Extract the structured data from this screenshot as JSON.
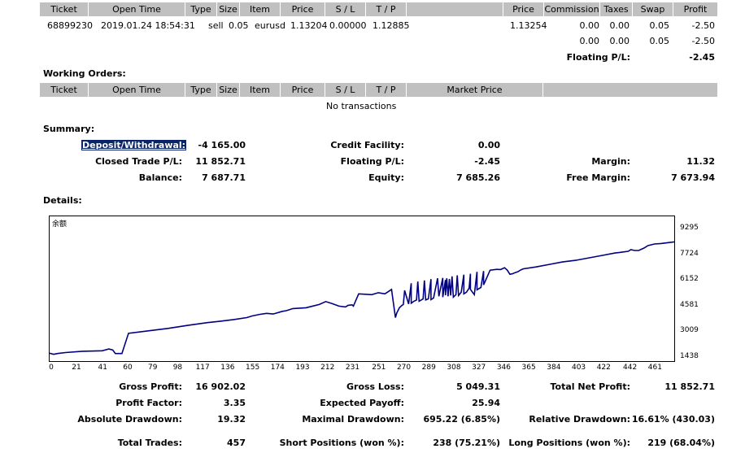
{
  "positions": {
    "headers": [
      "Ticket",
      "Open Time",
      "Type",
      "Size",
      "Item",
      "Price",
      "S / L",
      "T / P",
      "",
      "Price",
      "Commission",
      "Taxes",
      "Swap",
      "Profit"
    ],
    "row": {
      "ticket": "68899230",
      "open_time": "2019.01.24 18:54:31",
      "type": "sell",
      "size": "0.05",
      "item": "eurusd",
      "price": "1.13204",
      "sl": "0.00000",
      "tp": "1.12885",
      "close_price": "1.13254",
      "commission": "0.00",
      "taxes": "0.00",
      "swap": "0.05",
      "profit": "-2.50"
    },
    "subtotal": {
      "commission": "0.00",
      "taxes": "0.00",
      "swap": "0.05",
      "profit": "-2.50"
    },
    "floating_label": "Floating P/L:",
    "floating_value": "-2.45"
  },
  "working_orders": {
    "title": "Working Orders:",
    "headers": [
      "Ticket",
      "Open Time",
      "Type",
      "Size",
      "Item",
      "Price",
      "S / L",
      "T / P",
      "Market Price",
      ""
    ],
    "empty": "No transactions"
  },
  "summary": {
    "title": "Summary:",
    "deposit_label": "Deposit/Withdrawal:",
    "deposit_value": "-4 165.00",
    "credit_label": "Credit Facility:",
    "credit_value": "0.00",
    "closed_label": "Closed Trade P/L:",
    "closed_value": "11 852.71",
    "floating_label": "Floating P/L:",
    "floating_value": "-2.45",
    "margin_label": "Margin:",
    "margin_value": "11.32",
    "balance_label": "Balance:",
    "balance_value": "7 687.71",
    "equity_label": "Equity:",
    "equity_value": "7 685.26",
    "free_margin_label": "Free Margin:",
    "free_margin_value": "7 673.94"
  },
  "details": {
    "title": "Details:"
  },
  "chart_data": {
    "type": "line",
    "legend": "余额",
    "color": "#000080",
    "y_ticks": [
      "9295",
      "7724",
      "6152",
      "4581",
      "3009",
      "1438"
    ],
    "ylim": [
      1438,
      9295
    ],
    "x_ticks": [
      "0",
      "21",
      "41",
      "60",
      "79",
      "98",
      "117",
      "136",
      "155",
      "174",
      "193",
      "212",
      "231",
      "251",
      "270",
      "289",
      "308",
      "327",
      "346",
      "365",
      "384",
      "403",
      "422",
      "442",
      "461"
    ],
    "xlim": [
      0,
      475
    ],
    "x": [
      0,
      3,
      6,
      12,
      25,
      40,
      45,
      48,
      50,
      55,
      60,
      75,
      90,
      105,
      120,
      130,
      140,
      150,
      154,
      160,
      165,
      170,
      177,
      180,
      185,
      195,
      205,
      210,
      215,
      220,
      225,
      227,
      230,
      231,
      235,
      245,
      250,
      255,
      260,
      270,
      275,
      280,
      285,
      290,
      295,
      299,
      301,
      302,
      304,
      306,
      310,
      315,
      320,
      325,
      330,
      335,
      340,
      343,
      346,
      348,
      350,
      352,
      354,
      356,
      358,
      360,
      370,
      380,
      390,
      400,
      410,
      420,
      430,
      435,
      440,
      442,
      445,
      448,
      452,
      455,
      460,
      465,
      470,
      475
    ],
    "y": [
      1720,
      1650,
      1700,
      1760,
      1840,
      1870,
      1980,
      1920,
      1700,
      1700,
      2940,
      3090,
      3240,
      3420,
      3590,
      3680,
      3780,
      3900,
      4000,
      4100,
      4160,
      4120,
      4280,
      4320,
      4450,
      4500,
      4700,
      4880,
      4750,
      4600,
      4550,
      4650,
      4680,
      4600,
      5350,
      5300,
      5420,
      5350,
      5620,
      5560,
      6000,
      6100,
      6170,
      6250,
      6300,
      6320,
      6200,
      6300,
      6260,
      6420,
      6480,
      6520,
      6580,
      6700,
      6750,
      6800,
      6850,
      6840,
      6950,
      6800,
      6550,
      6580,
      6650,
      6700,
      6800,
      6880,
      7000,
      7150,
      7300,
      7400,
      7550,
      7700,
      7850,
      7900,
      7950,
      8050,
      8000,
      8000,
      8150,
      8300,
      8400,
      8430,
      8480,
      8530
    ],
    "overrides": [
      [
        263,
        3900
      ],
      [
        264,
        4180
      ],
      [
        266,
        4500
      ],
      [
        268,
        4650
      ],
      [
        269,
        4700
      ],
      [
        273,
        4730
      ],
      [
        275,
        4780
      ],
      [
        277,
        4900
      ],
      [
        279,
        4970
      ],
      [
        281,
        4900
      ],
      [
        283,
        5000
      ],
      [
        284,
        5040
      ],
      [
        286,
        4980
      ],
      [
        288,
        5050
      ],
      [
        290,
        5000
      ],
      [
        292,
        5100
      ],
      [
        296,
        5200
      ],
      [
        299,
        5150
      ],
      [
        301,
        5260
      ],
      [
        303,
        5200
      ],
      [
        305,
        5250
      ],
      [
        307,
        5150
      ],
      [
        309,
        5300
      ],
      [
        311,
        5250
      ],
      [
        313,
        5450
      ],
      [
        315,
        5350
      ],
      [
        317,
        5450
      ],
      [
        319,
        5700
      ],
      [
        320,
        5620
      ],
      [
        323,
        5300
      ],
      [
        325,
        5600
      ],
      [
        328,
        5740
      ],
      [
        330,
        5900
      ]
    ]
  },
  "stats": {
    "gross_profit_label": "Gross Profit:",
    "gross_profit": "16 902.02",
    "gross_loss_label": "Gross Loss:",
    "gross_loss": "5 049.31",
    "total_net_label": "Total Net Profit:",
    "total_net": "11 852.71",
    "profit_factor_label": "Profit Factor:",
    "profit_factor": "3.35",
    "expected_payoff_label": "Expected Payoff:",
    "expected_payoff": "25.94",
    "abs_dd_label": "Absolute Drawdown:",
    "abs_dd": "19.32",
    "max_dd_label": "Maximal Drawdown:",
    "max_dd": "695.22 (6.85%)",
    "rel_dd_label": "Relative Drawdown:",
    "rel_dd": "16.61% (430.03)",
    "total_trades_label": "Total Trades:",
    "total_trades": "457",
    "short_label": "Short Positions (won %):",
    "short": "238 (75.21%)",
    "long_label": "Long Positions (won %):",
    "long": "219 (68.04%)"
  }
}
